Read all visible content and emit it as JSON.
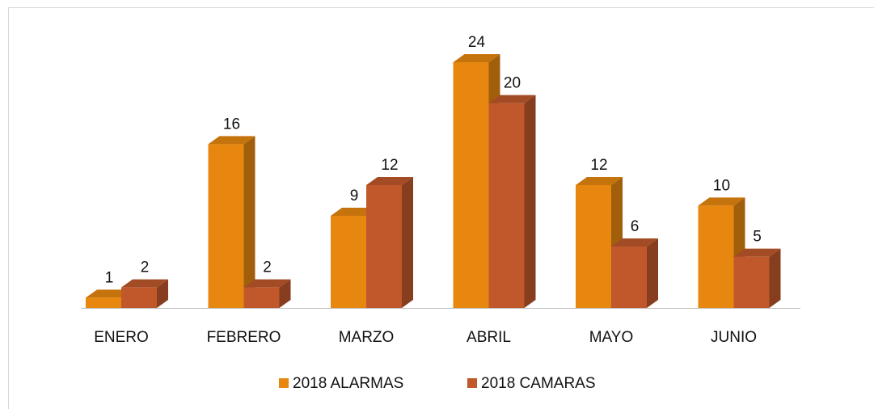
{
  "chart_data": {
    "type": "bar3d",
    "categories": [
      "ENERO",
      "FEBRERO",
      "MARZO",
      "ABRIL",
      "MAYO",
      "JUNIO"
    ],
    "series": [
      {
        "name": "2018 ALARMAS",
        "color": "#e8870f",
        "values": [
          1,
          16,
          9,
          24,
          12,
          10
        ]
      },
      {
        "name": "2018 CAMARAS",
        "color": "#c0582b",
        "values": [
          2,
          2,
          12,
          20,
          6,
          5
        ]
      }
    ]
  }
}
